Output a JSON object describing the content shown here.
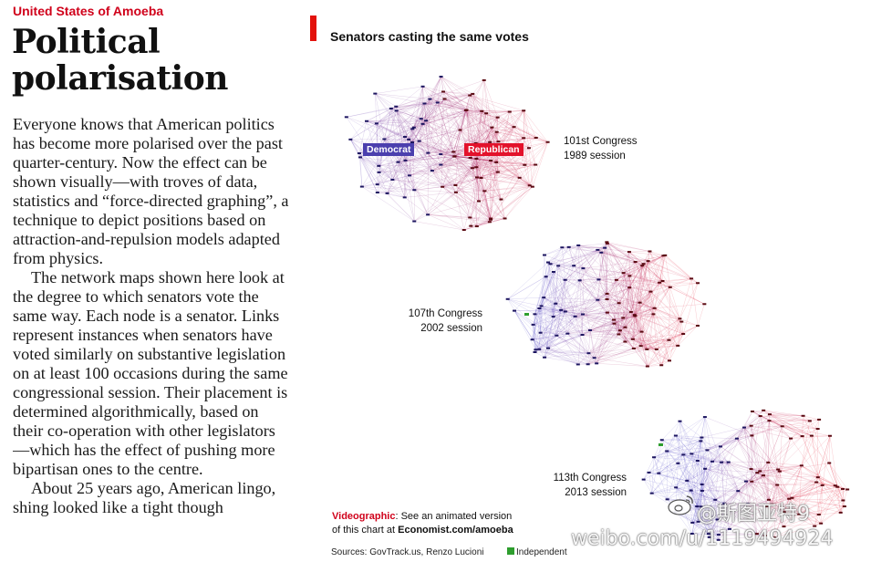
{
  "article": {
    "kicker": "United States of Amoeba",
    "headline": "Political polarisation",
    "paragraphs": [
      "Everyone knows that American politics has become more polarised over the past quarter-century. Now the effect can be shown visually—with troves of data, statistics and “force-directed graphing”, a technique to depict positions based on attraction-and-repulsion models adapted from physics.",
      "The network maps shown here look at the degree to which senators vote the same way. Each node is a senator. Links represent instances when senators have voted similarly on substantive legislation on at least 100 occasions during the same congressional session. Their placement is determined algorithmically, based on their co-operation with other legislators—which has the effect of pushing more bipartisan ones to the centre.",
      "About 25 years ago, American lingo, shing looked like a tight though"
    ]
  },
  "chart": {
    "title": "Senators casting the same votes",
    "graphs": [
      {
        "label_line1": "101st Congress",
        "label_line2": "1989 session",
        "democrat_label": "Democrat",
        "republican_label": "Republican"
      },
      {
        "label_line1": "107th Congress",
        "label_line2": "2002 session"
      },
      {
        "label_line1": "113th Congress",
        "label_line2": "2013 session"
      }
    ],
    "note_highlight": "Videographic",
    "note_rest": ": See an animated version",
    "note_line2_prefix": "of this chart at ",
    "note_site": "Economist.com/amoeba",
    "sources": "Sources: GovTrack.us, Renzo Lucioni",
    "legend_independent": "Independent",
    "colors": {
      "democrat": "#4a3fc4",
      "republican": "#e3122b",
      "independent": "#2e9e2e",
      "accent": "#e3120b"
    }
  },
  "watermark": {
    "handle": "@斯图亚特9",
    "url": "weibo.com/u/1119494924"
  }
}
